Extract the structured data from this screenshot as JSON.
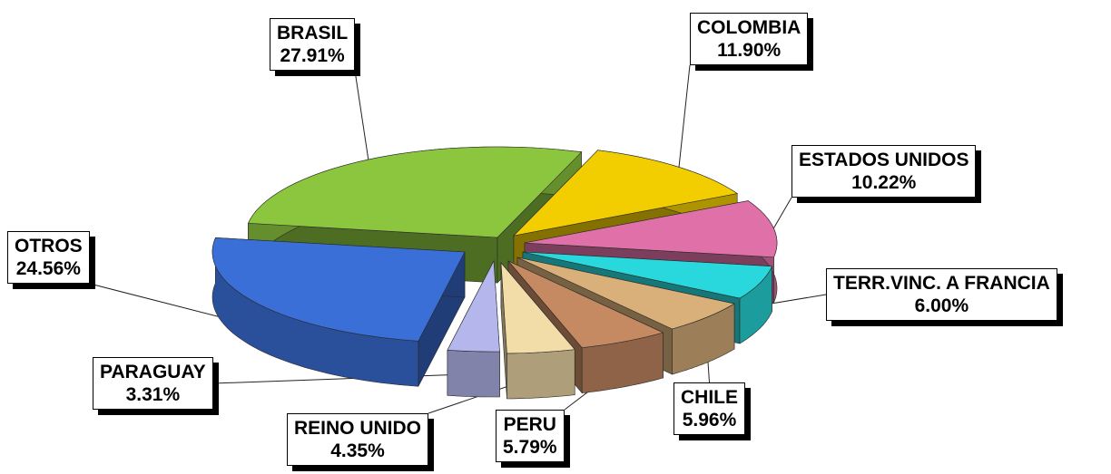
{
  "chart_data": {
    "type": "pie",
    "style": "3d-exploded",
    "title": "",
    "unit": "%",
    "slices": [
      {
        "name": "BRASIL",
        "value": 27.91,
        "label": "27.91%",
        "color": "#8cc63f"
      },
      {
        "name": "COLOMBIA",
        "value": 11.9,
        "label": "11.90%",
        "color": "#f2cd00"
      },
      {
        "name": "ESTADOS UNIDOS",
        "value": 10.22,
        "label": "10.22%",
        "color": "#e070a8"
      },
      {
        "name": "TERR.VINC. A FRANCIA",
        "value": 6.0,
        "label": "6.00%",
        "color": "#28d8dc"
      },
      {
        "name": "CHILE",
        "value": 5.96,
        "label": "5.96%",
        "color": "#d9b07a"
      },
      {
        "name": "PERU",
        "value": 5.79,
        "label": "5.79%",
        "color": "#c58a62"
      },
      {
        "name": "REINO UNIDO",
        "value": 4.35,
        "label": "4.35%",
        "color": "#f2dca8"
      },
      {
        "name": "PARAGUAY",
        "value": 3.31,
        "label": "3.31%",
        "color": "#b4b6ec"
      },
      {
        "name": "OTROS",
        "value": 24.56,
        "label": "24.56%",
        "color": "#3a6fd8"
      }
    ]
  }
}
